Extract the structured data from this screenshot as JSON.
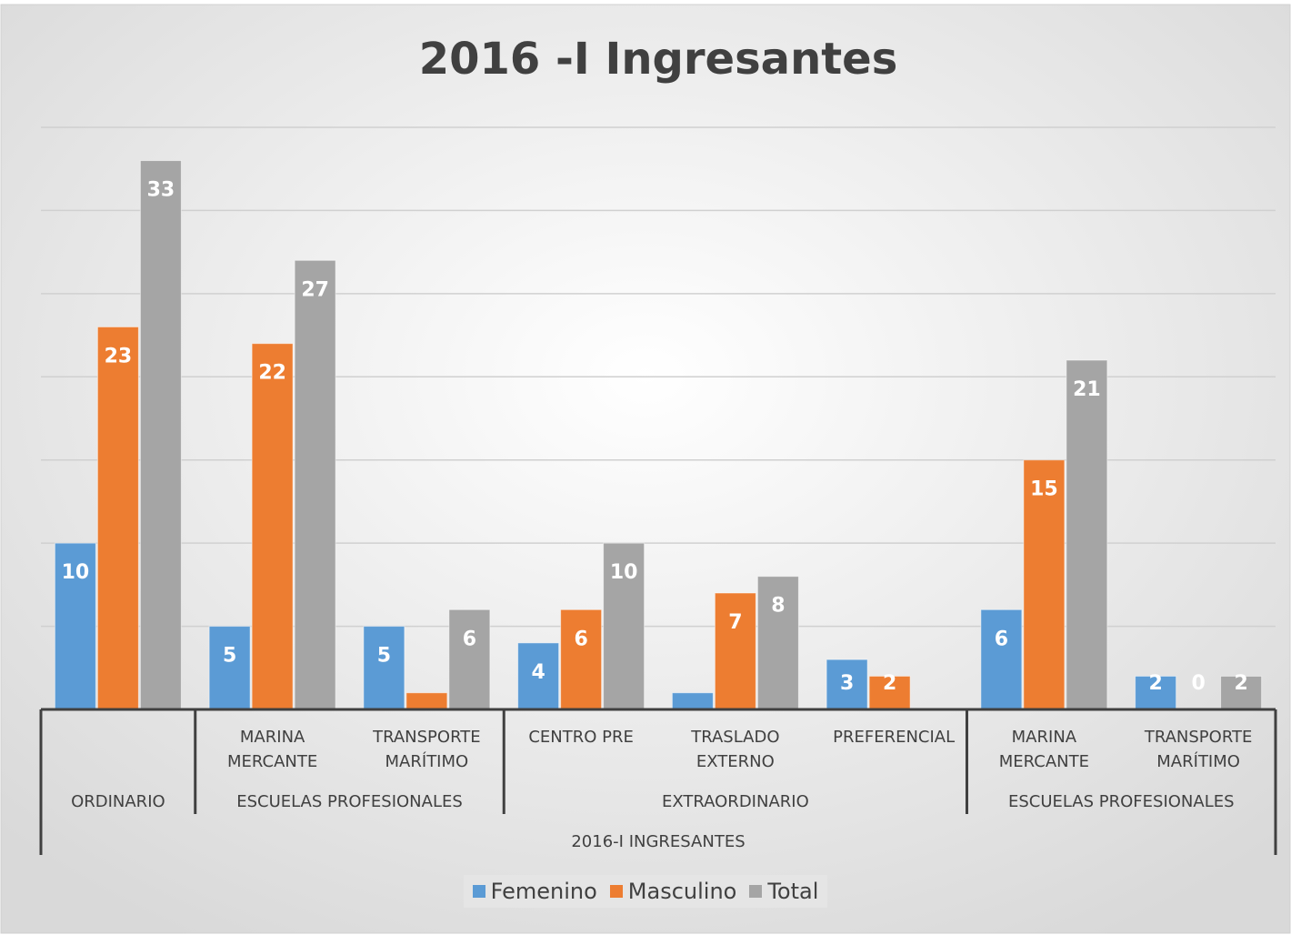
{
  "chart_data": {
    "type": "bar",
    "title": "2016 -I Ingresantes",
    "categories": [
      null,
      "MARINA MERCANTE",
      "TRANSPORTE MARÍTIMO",
      "CENTRO PRE",
      "TRASLADO EXTERNO",
      "PREFERENCIAL",
      "MARINA MERCANTE",
      "TRANSPORTE MARÍTIMO"
    ],
    "category_groups": [
      {
        "label": "ORDINARIO",
        "span": 1
      },
      {
        "label": "ESCUELAS PROFESIONALES",
        "span": 2
      },
      {
        "label": "EXTRAORDINARIO",
        "span": 3
      },
      {
        "label": "ESCUELAS PROFESIONALES",
        "span": 2
      }
    ],
    "top_group": "2016-I INGRESANTES",
    "series": [
      {
        "name": "Femenino",
        "color": "#5b9bd5",
        "values": [
          10,
          5,
          5,
          4,
          1,
          3,
          6,
          2
        ],
        "value_labels": [
          "10",
          "5",
          "5",
          "4",
          null,
          "3",
          "6",
          "2"
        ]
      },
      {
        "name": "Masculino",
        "color": "#ed7d31",
        "values": [
          23,
          22,
          1,
          6,
          7,
          2,
          15,
          0
        ],
        "value_labels": [
          "23",
          "22",
          null,
          "6",
          "7",
          "2",
          "15",
          "0"
        ]
      },
      {
        "name": "Total",
        "color": "#a5a5a5",
        "values": [
          33,
          27,
          6,
          10,
          8,
          null,
          21,
          2
        ],
        "value_labels": [
          "33",
          "27",
          "6",
          "10",
          "8",
          null,
          "21",
          "2"
        ]
      }
    ],
    "ylim": [
      0,
      35
    ],
    "yticks": [
      0,
      5,
      10,
      15,
      20,
      25,
      30,
      35
    ],
    "grid": true,
    "legend": "bottom"
  }
}
